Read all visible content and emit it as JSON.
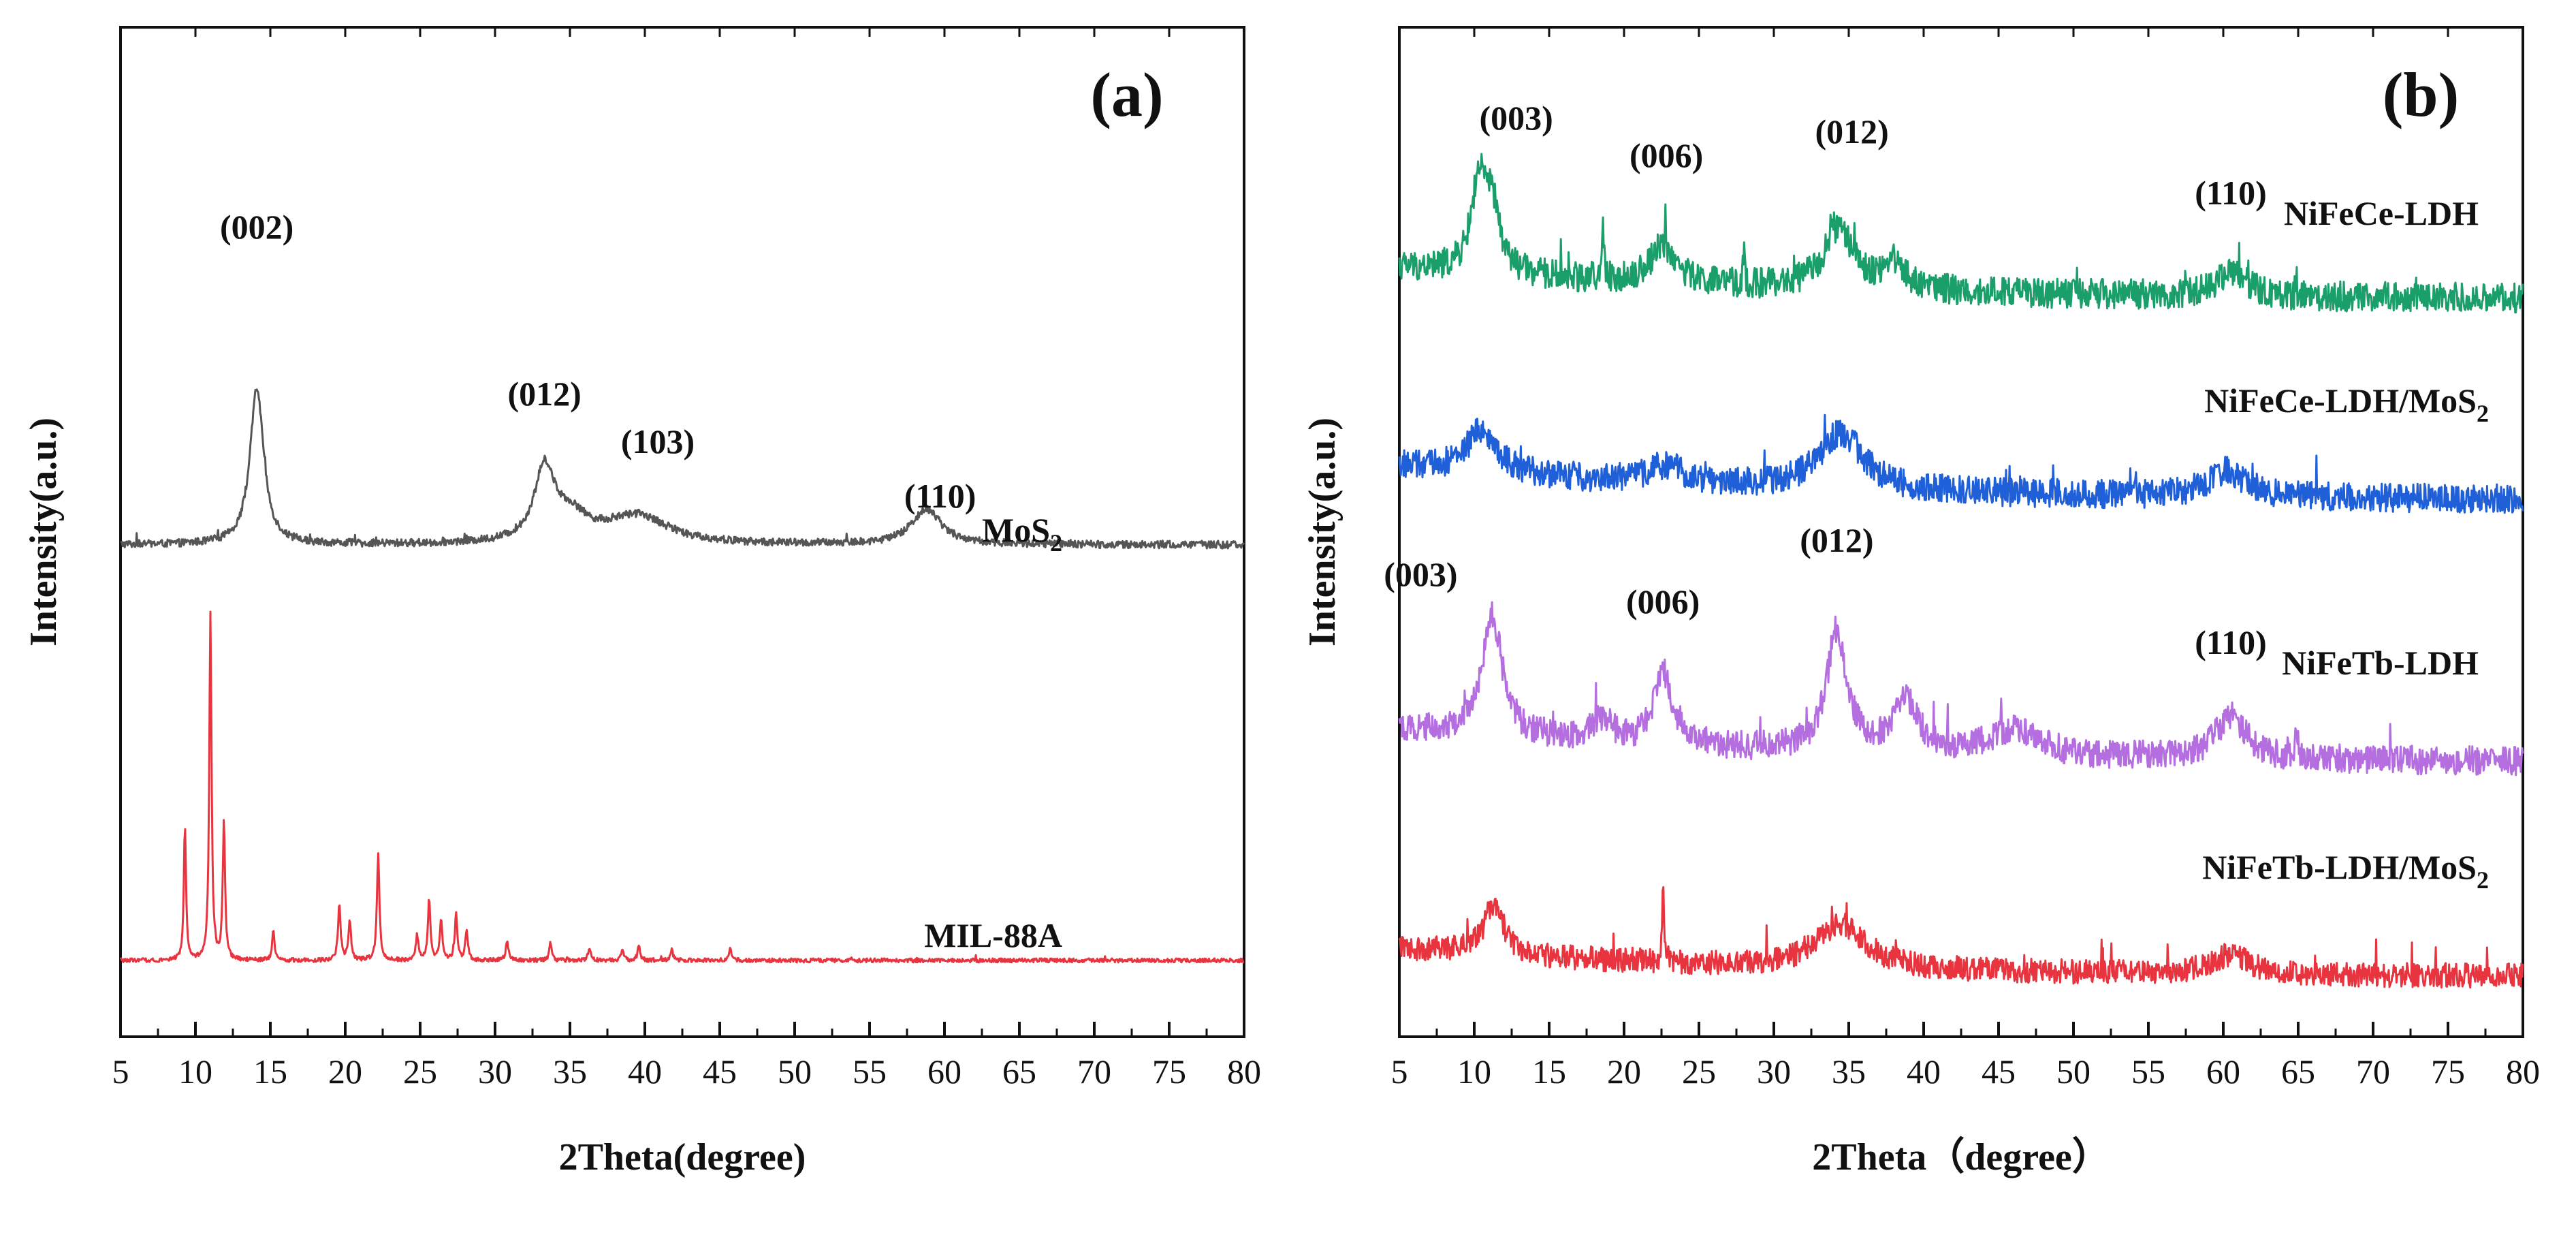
{
  "chart_data": [
    {
      "type": "line",
      "panel_label": "(a)",
      "xlabel": "2Theta(degree)",
      "ylabel": "Intensity(a.u.)",
      "xlim": [
        5,
        80
      ],
      "x_ticks": [
        5,
        10,
        15,
        20,
        25,
        30,
        35,
        40,
        45,
        50,
        55,
        60,
        65,
        70,
        75,
        80
      ],
      "y_ticks_shown": false,
      "legend": "inline labels at right end of traces",
      "series": [
        {
          "name": "MoS2",
          "label_main": "MoS",
          "label_sub": "2",
          "color": "#555555",
          "baseline": 0.0,
          "peaks": [
            {
              "x": 14.1,
              "height": 0.62,
              "width": 0.55
            },
            {
              "x": 33.3,
              "height": 0.28,
              "width": 0.8
            },
            {
              "x": 35.0,
              "height": 0.1,
              "width": 1.5
            },
            {
              "x": 39.5,
              "height": 0.11,
              "width": 2.5
            },
            {
              "x": 58.8,
              "height": 0.14,
              "width": 1.2
            }
          ],
          "noise": 0.015
        },
        {
          "name": "MIL-88A",
          "label_main": "MIL-88A",
          "label_sub": "",
          "color": "#e8343f",
          "baseline": 0.0,
          "peaks": [
            {
              "x": 9.3,
              "height": 0.53,
              "width": 0.09
            },
            {
              "x": 11.0,
              "height": 1.37,
              "width": 0.09
            },
            {
              "x": 11.9,
              "height": 0.55,
              "width": 0.09
            },
            {
              "x": 15.2,
              "height": 0.12,
              "width": 0.09
            },
            {
              "x": 19.6,
              "height": 0.22,
              "width": 0.1
            },
            {
              "x": 20.3,
              "height": 0.16,
              "width": 0.1
            },
            {
              "x": 22.2,
              "height": 0.42,
              "width": 0.1
            },
            {
              "x": 24.8,
              "height": 0.1,
              "width": 0.1
            },
            {
              "x": 25.6,
              "height": 0.24,
              "width": 0.1
            },
            {
              "x": 26.4,
              "height": 0.16,
              "width": 0.1
            },
            {
              "x": 27.4,
              "height": 0.18,
              "width": 0.1
            },
            {
              "x": 28.1,
              "height": 0.12,
              "width": 0.1
            },
            {
              "x": 30.8,
              "height": 0.08,
              "width": 0.1
            },
            {
              "x": 33.7,
              "height": 0.07,
              "width": 0.1
            },
            {
              "x": 36.3,
              "height": 0.05,
              "width": 0.1
            },
            {
              "x": 38.5,
              "height": 0.04,
              "width": 0.1
            },
            {
              "x": 39.6,
              "height": 0.06,
              "width": 0.1
            },
            {
              "x": 41.8,
              "height": 0.04,
              "width": 0.1
            },
            {
              "x": 45.7,
              "height": 0.05,
              "width": 0.1
            }
          ],
          "noise": 0.008
        }
      ],
      "annotations": [
        {
          "text": "(002)",
          "x": 14.1
        },
        {
          "text": "(012)",
          "x": 33.3
        },
        {
          "text": "(103)",
          "x": 39.5
        },
        {
          "text": "(110)",
          "x": 58.8
        }
      ]
    },
    {
      "type": "line",
      "panel_label": "(b)",
      "xlabel": "2Theta（degree）",
      "ylabel": "Intensity(a.u.)",
      "xlim": [
        5,
        80
      ],
      "x_ticks": [
        5,
        10,
        15,
        20,
        25,
        30,
        35,
        40,
        45,
        50,
        55,
        60,
        65,
        70,
        75,
        80
      ],
      "y_ticks_shown": false,
      "legend": "inline labels at right end of traces",
      "series": [
        {
          "name": "NiFeCe-LDH",
          "label_main": "NiFeCe-LDH",
          "label_sub": "",
          "color": "#1a9e6a",
          "peaks": [
            {
              "x": 10.3,
              "height": 0.32,
              "width": 0.6
            },
            {
              "x": 11.2,
              "height": 0.22,
              "width": 0.6
            },
            {
              "x": 18.6,
              "height": 0.18,
              "width": 0.08
            },
            {
              "x": 22.6,
              "height": 0.14,
              "width": 1.0
            },
            {
              "x": 28.0,
              "height": 0.1,
              "width": 0.08
            },
            {
              "x": 34.3,
              "height": 0.22,
              "width": 1.2
            },
            {
              "x": 38.0,
              "height": 0.1,
              "width": 0.9
            },
            {
              "x": 60.5,
              "height": 0.09,
              "width": 1.2
            }
          ],
          "noise": 0.055
        },
        {
          "name": "NiFeCe-LDH/MoS2",
          "label_main": "NiFeCe-LDH/MoS",
          "label_sub": "2",
          "color": "#1f5fd8",
          "peaks": [
            {
              "x": 10.5,
              "height": 0.15,
              "width": 1.2
            },
            {
              "x": 22.8,
              "height": 0.06,
              "width": 1.5
            },
            {
              "x": 34.5,
              "height": 0.2,
              "width": 1.8
            },
            {
              "x": 60.2,
              "height": 0.09,
              "width": 1.5
            }
          ],
          "noise": 0.05
        },
        {
          "name": "NiFeTb-LDH",
          "label_main": "NiFeTb-LDH",
          "label_sub": "",
          "color": "#b46ee0",
          "peaks": [
            {
              "x": 11.2,
              "height": 0.42,
              "width": 0.8
            },
            {
              "x": 18.5,
              "height": 0.08,
              "width": 0.8
            },
            {
              "x": 22.6,
              "height": 0.26,
              "width": 0.7
            },
            {
              "x": 34.2,
              "height": 0.42,
              "width": 0.8
            },
            {
              "x": 38.8,
              "height": 0.18,
              "width": 1.0
            },
            {
              "x": 46.0,
              "height": 0.09,
              "width": 2.0
            },
            {
              "x": 60.5,
              "height": 0.15,
              "width": 1.2
            },
            {
              "x": 64.9,
              "height": 0.1,
              "width": 0.1
            }
          ],
          "noise": 0.05
        },
        {
          "name": "NiFeTb-LDH/MoS2",
          "label_main": "NiFeTb-LDH/MoS",
          "label_sub": "2",
          "color": "#e8343f",
          "peaks": [
            {
              "x": 11.3,
              "height": 0.2,
              "width": 0.8
            },
            {
              "x": 22.6,
              "height": 0.28,
              "width": 0.08
            },
            {
              "x": 34.5,
              "height": 0.18,
              "width": 2.0
            },
            {
              "x": 60.5,
              "height": 0.08,
              "width": 1.5
            }
          ],
          "noise": 0.05
        }
      ],
      "annotations": [
        {
          "text": "(003)",
          "x": 10.3
        },
        {
          "text": "(006)",
          "x": 22.6
        },
        {
          "text": "(012)",
          "x": 34.3
        },
        {
          "text": "(110)",
          "x": 60.5
        },
        {
          "text": "(003)",
          "x": 11.2
        },
        {
          "text": "(006)",
          "x": 22.6
        },
        {
          "text": "(012)",
          "x": 34.2
        },
        {
          "text": "(110)",
          "x": 60.5
        }
      ]
    }
  ]
}
